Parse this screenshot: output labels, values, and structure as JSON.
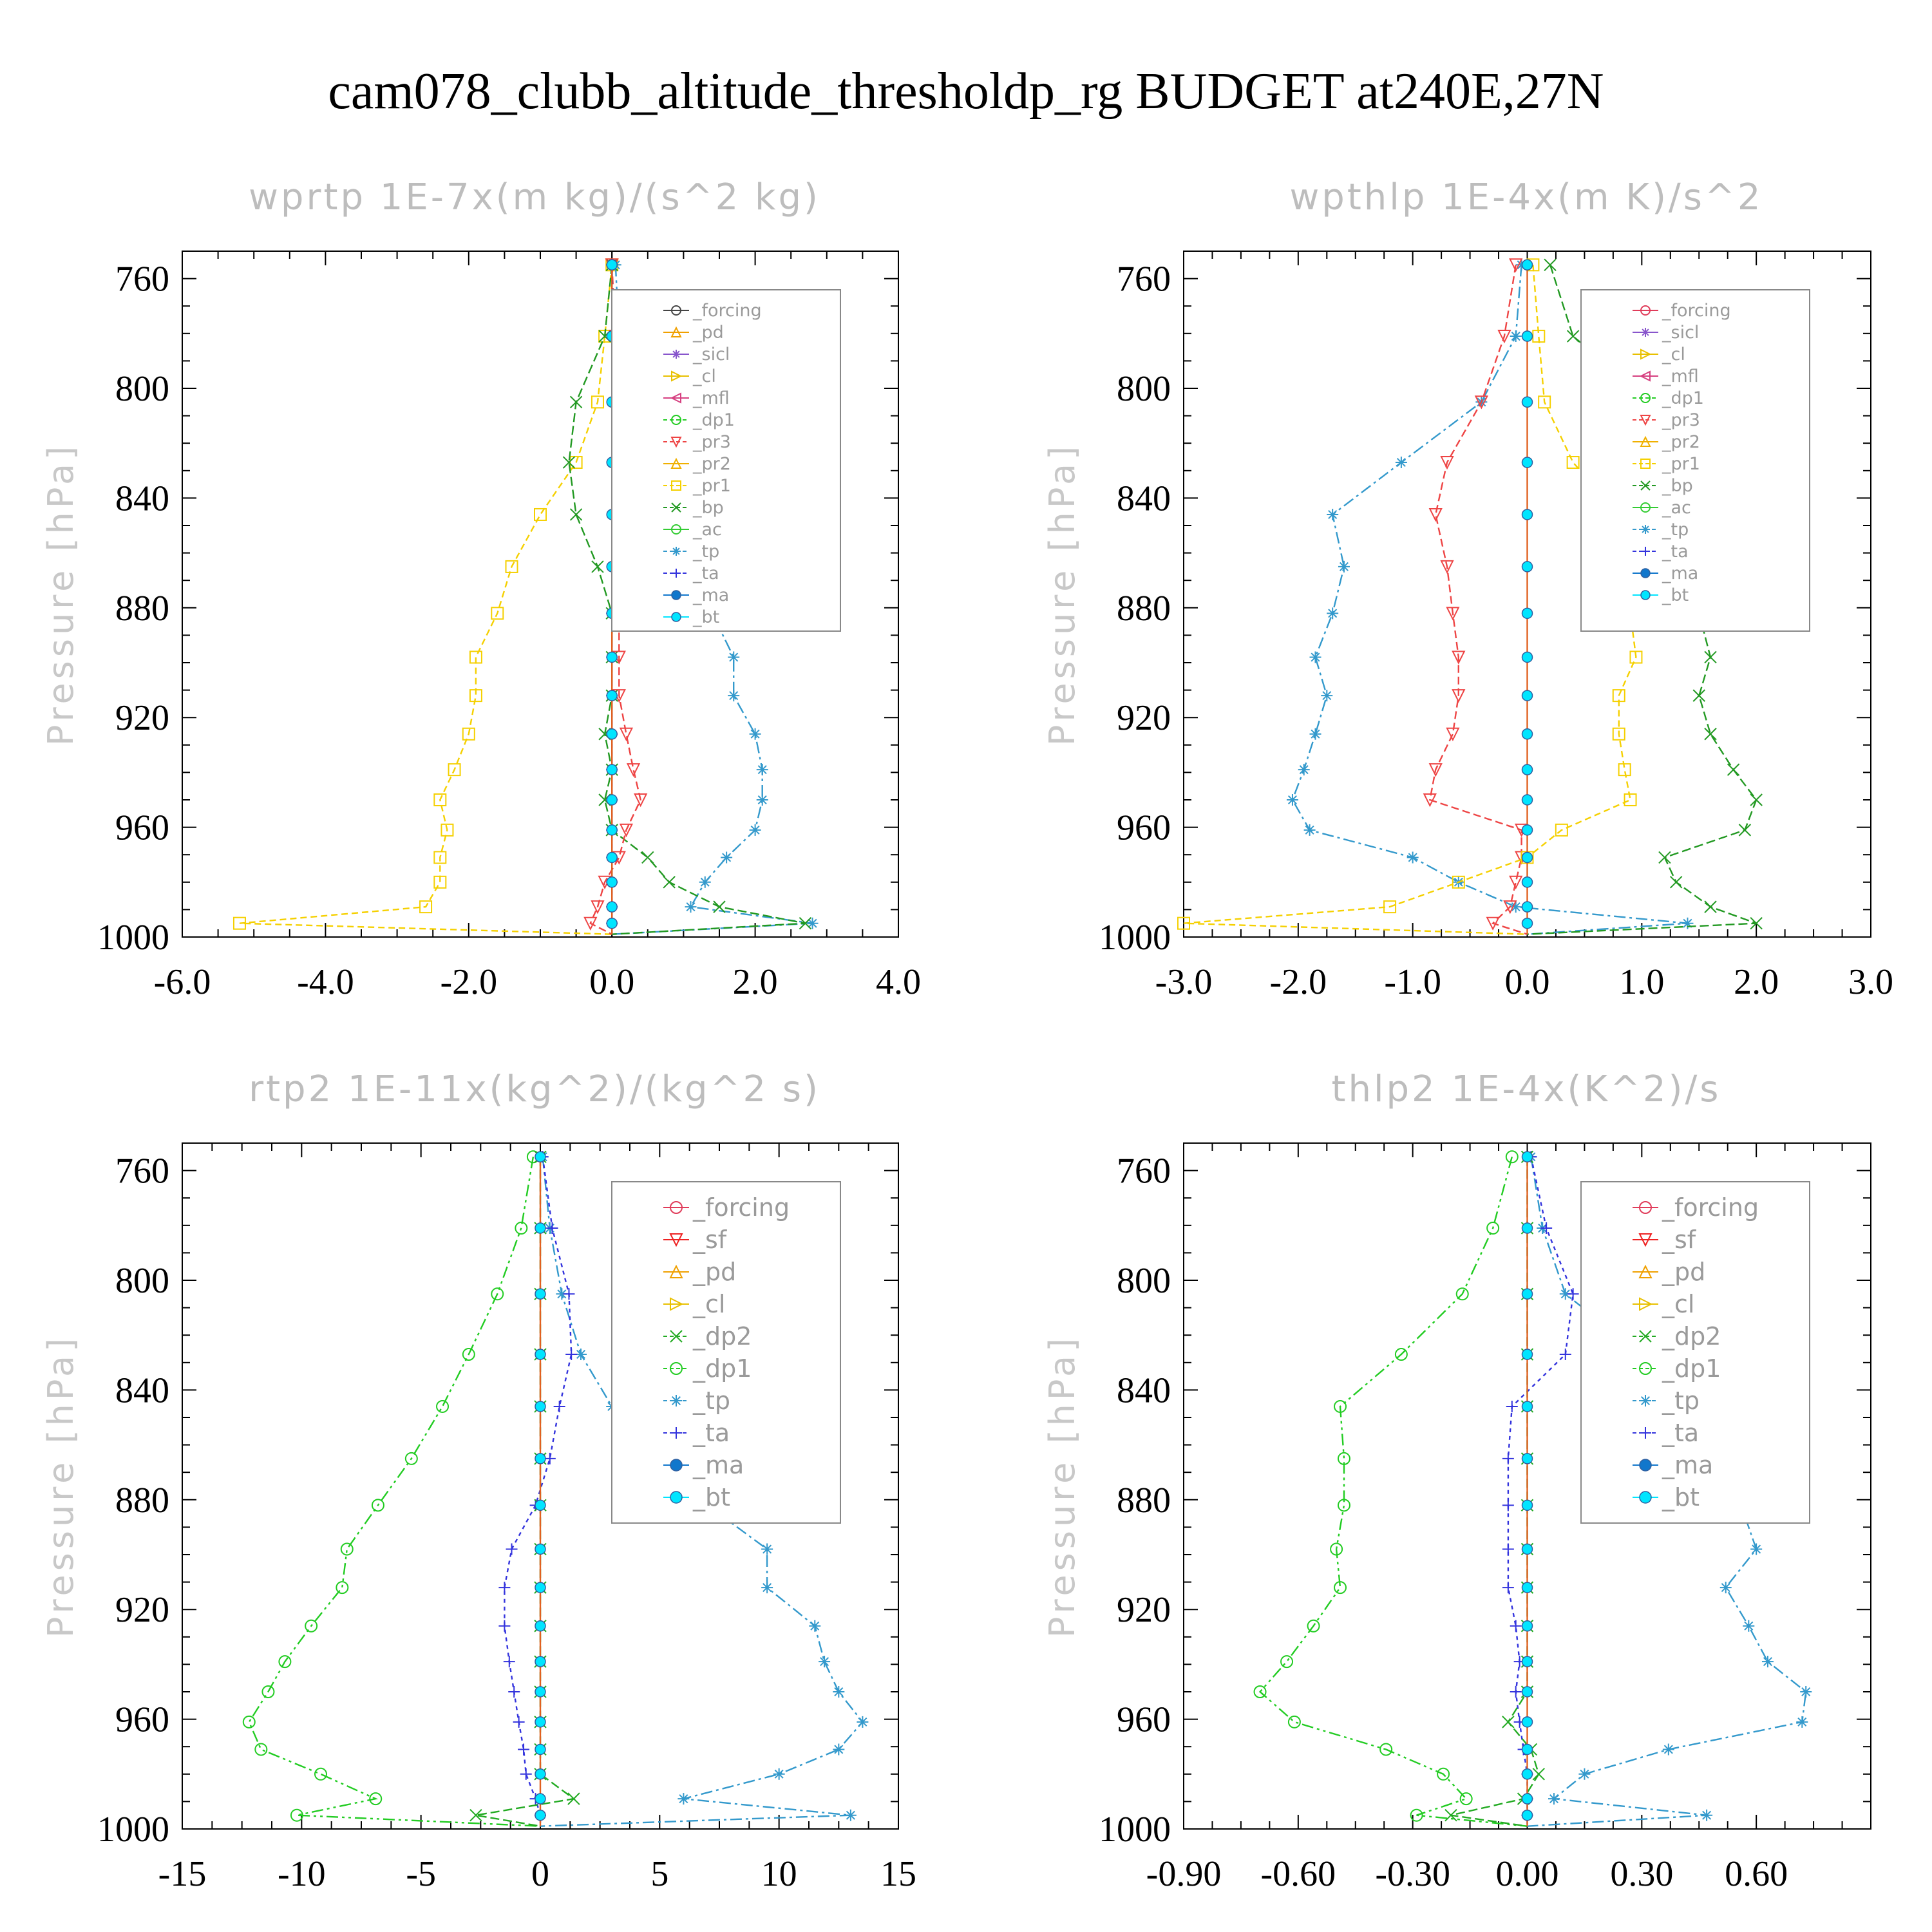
{
  "title": "cam078_clubb_altitude_thresholdp_rg  BUDGET at240E,27N",
  "colors": {
    "_forcing_a": "#444444",
    "_forcing": "#e03c5a",
    "_pd": "#f0a000",
    "_sicl": "#8855cc",
    "_cl": "#e8c000",
    "_mfl": "#d64080",
    "_dp1": "#22cc22",
    "_pr3": "#ee4444",
    "_pr2": "#f0b000",
    "_pr1": "#f5d000",
    "_bp": "#229922",
    "_ac": "#33cc33",
    "_tp": "#3399cc",
    "_ta": "#3333dd",
    "_ma": "#1177cc",
    "_bt": "#00e5ff",
    "_sf": "#ee2222",
    "_dp2": "#22aa22"
  },
  "chart_data": [
    {
      "type": "line",
      "title": "wprtp  1E-7x(m kg)/(s^2 kg)",
      "ylabel": "Pressure [hPa]",
      "xlim": [
        -6,
        4
      ],
      "ylim": [
        1000,
        750
      ],
      "y_inverted": true,
      "xticks": [
        "-6.0",
        "-4.0",
        "-2.0",
        "0.0",
        "2.0",
        "4.0"
      ],
      "xtick_values": [
        -6,
        -4,
        -2,
        0,
        2,
        4
      ],
      "yticks": [
        "760",
        "800",
        "840",
        "880",
        "920",
        "960",
        "1000"
      ],
      "ytick_values": [
        760,
        800,
        840,
        880,
        920,
        960,
        1000
      ],
      "legend_position": "top-right",
      "legend": [
        "_forcing",
        "_pd",
        "_sicl",
        "_cl",
        "_mfl",
        "_dp1",
        "_pr3",
        "_pr2",
        "_pr1",
        "_bp",
        "_ac",
        "_tp",
        "_ta",
        "_ma",
        "_bt"
      ],
      "levels": [
        755,
        781,
        805,
        827,
        846,
        865,
        882,
        898,
        912,
        926,
        939,
        950,
        961,
        971,
        980,
        989,
        995,
        999
      ],
      "series": [
        {
          "name": "_pr1",
          "values": [
            0,
            -0.1,
            -0.2,
            -0.5,
            -1.0,
            -1.4,
            -1.6,
            -1.9,
            -1.9,
            -2.0,
            -2.2,
            -2.4,
            -2.3,
            -2.4,
            -2.4,
            -2.6,
            -5.2,
            0
          ]
        },
        {
          "name": "_tp",
          "values": [
            0.05,
            0.1,
            0.3,
            0.6,
            0.9,
            1.2,
            1.4,
            1.7,
            1.7,
            2.0,
            2.1,
            2.1,
            2.0,
            1.6,
            1.3,
            1.1,
            2.8,
            0
          ]
        },
        {
          "name": "_bp",
          "values": [
            0,
            -0.1,
            -0.5,
            -0.6,
            -0.5,
            -0.2,
            0,
            0,
            0,
            -0.1,
            0,
            -0.1,
            0,
            0.5,
            0.8,
            1.5,
            2.7,
            0
          ]
        },
        {
          "name": "_pr3",
          "values": [
            0,
            0.05,
            0.1,
            0.3,
            0.3,
            0.25,
            0.1,
            0.1,
            0.1,
            0.2,
            0.3,
            0.4,
            0.2,
            0.1,
            -0.1,
            -0.2,
            -0.3,
            0
          ]
        },
        {
          "name": "_ta",
          "values": [
            0,
            0.02,
            0.05,
            0.05,
            0.03,
            0.02,
            0,
            0,
            0,
            0,
            0,
            0,
            0,
            0,
            0,
            0,
            0,
            0
          ]
        },
        {
          "name": "_bt",
          "values": [
            0,
            0,
            0,
            0,
            0,
            0,
            0,
            0,
            0,
            0,
            0,
            0,
            0,
            0,
            0,
            0,
            0,
            0
          ]
        }
      ]
    },
    {
      "type": "line",
      "title": "wpthlp  1E-4x(m K)/s^2",
      "ylabel": "Pressure [hPa]",
      "xlim": [
        -3,
        3
      ],
      "ylim": [
        1000,
        750
      ],
      "y_inverted": true,
      "xticks": [
        "-3.0",
        "-2.0",
        "-1.0",
        "0.0",
        "1.0",
        "2.0",
        "3.0"
      ],
      "xtick_values": [
        -3,
        -2,
        -1,
        0,
        1,
        2,
        3
      ],
      "yticks": [
        "760",
        "800",
        "840",
        "880",
        "920",
        "960",
        "1000"
      ],
      "ytick_values": [
        760,
        800,
        840,
        880,
        920,
        960,
        1000
      ],
      "legend_position": "top-right",
      "legend": [
        "_forcing",
        "_sicl",
        "_cl",
        "_mfl",
        "_dp1",
        "_pr3",
        "_pr2",
        "_pr1",
        "_bp",
        "_ac",
        "_tp",
        "_ta",
        "_ma",
        "_bt"
      ],
      "levels": [
        755,
        781,
        805,
        827,
        846,
        865,
        882,
        898,
        912,
        926,
        939,
        950,
        961,
        971,
        980,
        989,
        995,
        999
      ],
      "series": [
        {
          "name": "_tp",
          "values": [
            -0.05,
            -0.1,
            -0.4,
            -1.1,
            -1.7,
            -1.6,
            -1.7,
            -1.85,
            -1.75,
            -1.85,
            -1.95,
            -2.05,
            -1.9,
            -1.0,
            -0.6,
            -0.1,
            1.4,
            0
          ]
        },
        {
          "name": "_bp",
          "values": [
            0.2,
            0.4,
            1.1,
            1.5,
            1.8,
            1.5,
            1.5,
            1.6,
            1.5,
            1.6,
            1.8,
            2.0,
            1.9,
            1.2,
            1.3,
            1.6,
            2.0,
            0
          ]
        },
        {
          "name": "_pr3",
          "values": [
            -0.1,
            -0.2,
            -0.4,
            -0.7,
            -0.8,
            -0.7,
            -0.65,
            -0.6,
            -0.6,
            -0.65,
            -0.8,
            -0.85,
            -0.05,
            -0.05,
            -0.1,
            -0.15,
            -0.3,
            0
          ]
        },
        {
          "name": "_pr1",
          "values": [
            0.05,
            0.1,
            0.15,
            0.4,
            0.8,
            0.85,
            0.9,
            0.95,
            0.8,
            0.8,
            0.85,
            0.9,
            0.3,
            0,
            -0.6,
            -1.2,
            -3.0,
            0
          ]
        },
        {
          "name": "_bt",
          "values": [
            0,
            0,
            0,
            0,
            0,
            0,
            0,
            0,
            0,
            0,
            0,
            0,
            0,
            0,
            0,
            0,
            0,
            0
          ]
        }
      ]
    },
    {
      "type": "line",
      "title": "rtp2  1E-11x(kg^2)/(kg^2 s)",
      "ylabel": "Pressure [hPa]",
      "xlim": [
        -15,
        15
      ],
      "ylim": [
        1000,
        750
      ],
      "y_inverted": true,
      "xticks": [
        "-15",
        "-10",
        "-5",
        "0",
        "5",
        "10",
        "15"
      ],
      "xtick_values": [
        -15,
        -10,
        -5,
        0,
        5,
        10,
        15
      ],
      "yticks": [
        "760",
        "800",
        "840",
        "880",
        "920",
        "960",
        "1000"
      ],
      "ytick_values": [
        760,
        800,
        840,
        880,
        920,
        960,
        1000
      ],
      "legend_position": "top-right",
      "legend": [
        "_forcing",
        "_sf",
        "_pd",
        "_cl",
        "_dp2",
        "_dp1",
        "_tp",
        "_ta",
        "_ma",
        "_bt"
      ],
      "levels": [
        755,
        781,
        805,
        827,
        846,
        865,
        882,
        898,
        912,
        926,
        939,
        950,
        961,
        971,
        980,
        989,
        995,
        999
      ],
      "series": [
        {
          "name": "_dp1",
          "values": [
            -0.3,
            -0.8,
            -1.8,
            -3.0,
            -4.1,
            -5.4,
            -6.8,
            -8.1,
            -8.3,
            -9.6,
            -10.7,
            -11.4,
            -12.2,
            -11.7,
            -9.2,
            -6.9,
            -10.2,
            0
          ]
        },
        {
          "name": "_tp",
          "values": [
            0.1,
            0.4,
            0.9,
            1.7,
            3.0,
            4.5,
            7.0,
            9.5,
            9.5,
            11.5,
            11.9,
            12.5,
            13.5,
            12.5,
            10.0,
            6.0,
            13.0,
            0
          ]
        },
        {
          "name": "_ta",
          "values": [
            0.1,
            0.5,
            1.2,
            1.3,
            0.8,
            0.4,
            -0.2,
            -1.2,
            -1.5,
            -1.5,
            -1.3,
            -1.1,
            -0.9,
            -0.7,
            -0.6,
            -0.2,
            0,
            0
          ]
        },
        {
          "name": "_dp2",
          "values": [
            0,
            0,
            0,
            0,
            0,
            0,
            0,
            0,
            0,
            0,
            0,
            0,
            0,
            0,
            0,
            1.4,
            -2.7,
            0
          ]
        },
        {
          "name": "_bt",
          "values": [
            0,
            0,
            0,
            0,
            0,
            0,
            0,
            0,
            0,
            0,
            0,
            0,
            0,
            0,
            0,
            0,
            0,
            0
          ]
        }
      ]
    },
    {
      "type": "line",
      "title": "thlp2  1E-4x(K^2)/s",
      "ylabel": "Pressure [hPa]",
      "xlim": [
        -0.9,
        0.9
      ],
      "ylim": [
        1000,
        750
      ],
      "y_inverted": true,
      "xticks": [
        "-0.90",
        "-0.60",
        "-0.30",
        "0.00",
        "0.30",
        "0.60"
      ],
      "xtick_values": [
        -0.9,
        -0.6,
        -0.3,
        0,
        0.3,
        0.6
      ],
      "yticks": [
        "760",
        "800",
        "840",
        "880",
        "920",
        "960",
        "1000"
      ],
      "ytick_values": [
        760,
        800,
        840,
        880,
        920,
        960,
        1000
      ],
      "legend_position": "top-right",
      "legend": [
        "_forcing",
        "_sf",
        "_pd",
        "_cl",
        "_dp2",
        "_dp1",
        "_tp",
        "_ta",
        "_ma",
        "_bt"
      ],
      "levels": [
        755,
        781,
        805,
        827,
        846,
        865,
        882,
        898,
        912,
        926,
        939,
        950,
        961,
        971,
        980,
        989,
        995,
        999
      ],
      "series": [
        {
          "name": "_dp1",
          "values": [
            -0.04,
            -0.09,
            -0.17,
            -0.33,
            -0.49,
            -0.48,
            -0.48,
            -0.5,
            -0.49,
            -0.56,
            -0.63,
            -0.7,
            -0.61,
            -0.37,
            -0.22,
            -0.16,
            -0.29,
            0
          ]
        },
        {
          "name": "_tp",
          "values": [
            0.01,
            0.04,
            0.1,
            0.3,
            0.54,
            0.52,
            0.56,
            0.6,
            0.52,
            0.58,
            0.63,
            0.73,
            0.72,
            0.37,
            0.15,
            0.07,
            0.47,
            0
          ]
        },
        {
          "name": "_ta",
          "values": [
            0.01,
            0.05,
            0.12,
            0.1,
            -0.04,
            -0.05,
            -0.05,
            -0.05,
            -0.05,
            -0.03,
            -0.02,
            -0.03,
            -0.02,
            -0.01,
            0,
            0,
            0,
            0
          ]
        },
        {
          "name": "_dp2",
          "values": [
            0,
            0,
            0,
            0,
            0,
            0,
            0,
            0,
            0,
            0,
            0,
            0,
            -0.05,
            0.01,
            0.03,
            -0.01,
            -0.2,
            0
          ]
        },
        {
          "name": "_bt",
          "values": [
            0,
            0,
            0,
            0,
            0,
            0,
            0,
            0,
            0,
            0,
            0,
            0,
            0,
            0,
            0,
            0,
            0,
            0
          ]
        }
      ]
    }
  ]
}
